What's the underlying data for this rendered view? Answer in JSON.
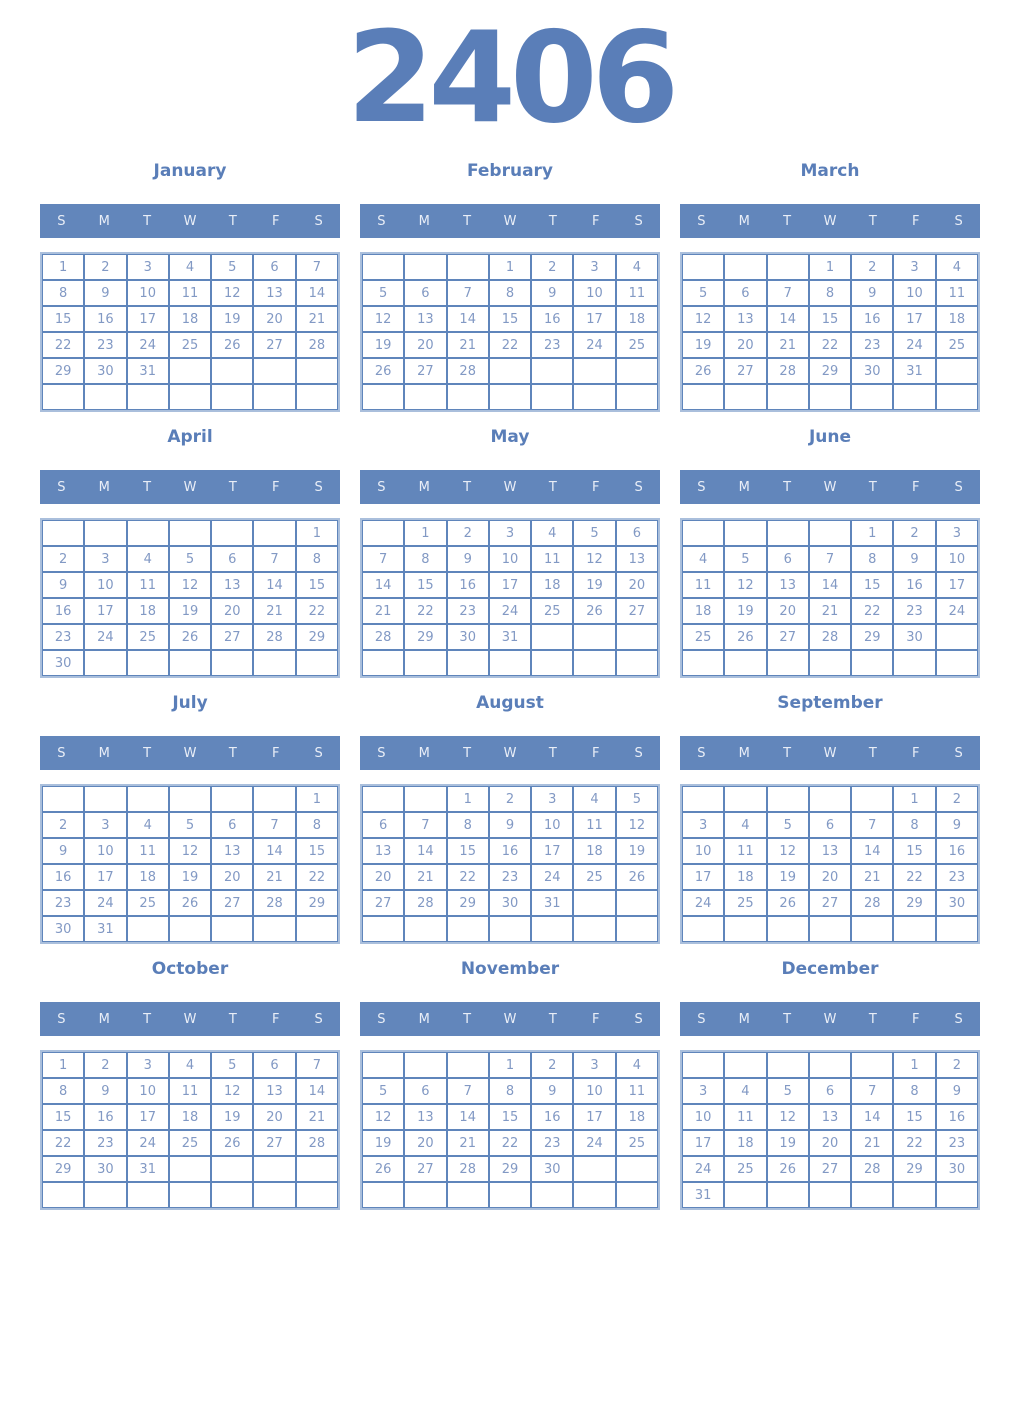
{
  "page": {
    "year": "2406"
  },
  "weekdays": [
    "S",
    "M",
    "T",
    "W",
    "T",
    "F",
    "S"
  ],
  "colors": {
    "accent": "#5a7eb8",
    "header_bg": "#6286bb",
    "header_text": "#e9eef7",
    "day_number": "#8299c4",
    "grid_border": "#5f85bb",
    "grid_outer_border": "#aabfdc",
    "background": "#ffffff"
  },
  "months": [
    {
      "name": "January",
      "weeks": [
        [
          "1",
          "2",
          "3",
          "4",
          "5",
          "6",
          "7"
        ],
        [
          "8",
          "9",
          "10",
          "11",
          "12",
          "13",
          "14"
        ],
        [
          "15",
          "16",
          "17",
          "18",
          "19",
          "20",
          "21"
        ],
        [
          "22",
          "23",
          "24",
          "25",
          "26",
          "27",
          "28"
        ],
        [
          "29",
          "30",
          "31",
          "",
          "",
          "",
          ""
        ],
        [
          "",
          "",
          "",
          "",
          "",
          "",
          ""
        ]
      ]
    },
    {
      "name": "February",
      "weeks": [
        [
          "",
          "",
          "",
          "1",
          "2",
          "3",
          "4"
        ],
        [
          "5",
          "6",
          "7",
          "8",
          "9",
          "10",
          "11"
        ],
        [
          "12",
          "13",
          "14",
          "15",
          "16",
          "17",
          "18"
        ],
        [
          "19",
          "20",
          "21",
          "22",
          "23",
          "24",
          "25"
        ],
        [
          "26",
          "27",
          "28",
          "",
          "",
          "",
          ""
        ],
        [
          "",
          "",
          "",
          "",
          "",
          "",
          ""
        ]
      ]
    },
    {
      "name": "March",
      "weeks": [
        [
          "",
          "",
          "",
          "1",
          "2",
          "3",
          "4"
        ],
        [
          "5",
          "6",
          "7",
          "8",
          "9",
          "10",
          "11"
        ],
        [
          "12",
          "13",
          "14",
          "15",
          "16",
          "17",
          "18"
        ],
        [
          "19",
          "20",
          "21",
          "22",
          "23",
          "24",
          "25"
        ],
        [
          "26",
          "27",
          "28",
          "29",
          "30",
          "31",
          ""
        ],
        [
          "",
          "",
          "",
          "",
          "",
          "",
          ""
        ]
      ]
    },
    {
      "name": "April",
      "weeks": [
        [
          "",
          "",
          "",
          "",
          "",
          "",
          "1"
        ],
        [
          "2",
          "3",
          "4",
          "5",
          "6",
          "7",
          "8"
        ],
        [
          "9",
          "10",
          "11",
          "12",
          "13",
          "14",
          "15"
        ],
        [
          "16",
          "17",
          "18",
          "19",
          "20",
          "21",
          "22"
        ],
        [
          "23",
          "24",
          "25",
          "26",
          "27",
          "28",
          "29"
        ],
        [
          "30",
          "",
          "",
          "",
          "",
          "",
          ""
        ]
      ]
    },
    {
      "name": "May",
      "weeks": [
        [
          "",
          "1",
          "2",
          "3",
          "4",
          "5",
          "6"
        ],
        [
          "7",
          "8",
          "9",
          "10",
          "11",
          "12",
          "13"
        ],
        [
          "14",
          "15",
          "16",
          "17",
          "18",
          "19",
          "20"
        ],
        [
          "21",
          "22",
          "23",
          "24",
          "25",
          "26",
          "27"
        ],
        [
          "28",
          "29",
          "30",
          "31",
          "",
          "",
          ""
        ],
        [
          "",
          "",
          "",
          "",
          "",
          "",
          ""
        ]
      ]
    },
    {
      "name": "June",
      "weeks": [
        [
          "",
          "",
          "",
          "",
          "1",
          "2",
          "3"
        ],
        [
          "4",
          "5",
          "6",
          "7",
          "8",
          "9",
          "10"
        ],
        [
          "11",
          "12",
          "13",
          "14",
          "15",
          "16",
          "17"
        ],
        [
          "18",
          "19",
          "20",
          "21",
          "22",
          "23",
          "24"
        ],
        [
          "25",
          "26",
          "27",
          "28",
          "29",
          "30",
          ""
        ],
        [
          "",
          "",
          "",
          "",
          "",
          "",
          ""
        ]
      ]
    },
    {
      "name": "July",
      "weeks": [
        [
          "",
          "",
          "",
          "",
          "",
          "",
          "1"
        ],
        [
          "2",
          "3",
          "4",
          "5",
          "6",
          "7",
          "8"
        ],
        [
          "9",
          "10",
          "11",
          "12",
          "13",
          "14",
          "15"
        ],
        [
          "16",
          "17",
          "18",
          "19",
          "20",
          "21",
          "22"
        ],
        [
          "23",
          "24",
          "25",
          "26",
          "27",
          "28",
          "29"
        ],
        [
          "30",
          "31",
          "",
          "",
          "",
          "",
          ""
        ]
      ]
    },
    {
      "name": "August",
      "weeks": [
        [
          "",
          "",
          "1",
          "2",
          "3",
          "4",
          "5"
        ],
        [
          "6",
          "7",
          "8",
          "9",
          "10",
          "11",
          "12"
        ],
        [
          "13",
          "14",
          "15",
          "16",
          "17",
          "18",
          "19"
        ],
        [
          "20",
          "21",
          "22",
          "23",
          "24",
          "25",
          "26"
        ],
        [
          "27",
          "28",
          "29",
          "30",
          "31",
          "",
          ""
        ],
        [
          "",
          "",
          "",
          "",
          "",
          "",
          ""
        ]
      ]
    },
    {
      "name": "September",
      "weeks": [
        [
          "",
          "",
          "",
          "",
          "",
          "1",
          "2"
        ],
        [
          "3",
          "4",
          "5",
          "6",
          "7",
          "8",
          "9"
        ],
        [
          "10",
          "11",
          "12",
          "13",
          "14",
          "15",
          "16"
        ],
        [
          "17",
          "18",
          "19",
          "20",
          "21",
          "22",
          "23"
        ],
        [
          "24",
          "25",
          "26",
          "27",
          "28",
          "29",
          "30"
        ],
        [
          "",
          "",
          "",
          "",
          "",
          "",
          ""
        ]
      ]
    },
    {
      "name": "October",
      "weeks": [
        [
          "1",
          "2",
          "3",
          "4",
          "5",
          "6",
          "7"
        ],
        [
          "8",
          "9",
          "10",
          "11",
          "12",
          "13",
          "14"
        ],
        [
          "15",
          "16",
          "17",
          "18",
          "19",
          "20",
          "21"
        ],
        [
          "22",
          "23",
          "24",
          "25",
          "26",
          "27",
          "28"
        ],
        [
          "29",
          "30",
          "31",
          "",
          "",
          "",
          ""
        ],
        [
          "",
          "",
          "",
          "",
          "",
          "",
          ""
        ]
      ]
    },
    {
      "name": "November",
      "weeks": [
        [
          "",
          "",
          "",
          "1",
          "2",
          "3",
          "4"
        ],
        [
          "5",
          "6",
          "7",
          "8",
          "9",
          "10",
          "11"
        ],
        [
          "12",
          "13",
          "14",
          "15",
          "16",
          "17",
          "18"
        ],
        [
          "19",
          "20",
          "21",
          "22",
          "23",
          "24",
          "25"
        ],
        [
          "26",
          "27",
          "28",
          "29",
          "30",
          "",
          ""
        ],
        [
          "",
          "",
          "",
          "",
          "",
          "",
          ""
        ]
      ]
    },
    {
      "name": "December",
      "weeks": [
        [
          "",
          "",
          "",
          "",
          "",
          "1",
          "2"
        ],
        [
          "3",
          "4",
          "5",
          "6",
          "7",
          "8",
          "9"
        ],
        [
          "10",
          "11",
          "12",
          "13",
          "14",
          "15",
          "16"
        ],
        [
          "17",
          "18",
          "19",
          "20",
          "21",
          "22",
          "23"
        ],
        [
          "24",
          "25",
          "26",
          "27",
          "28",
          "29",
          "30"
        ],
        [
          "31",
          "",
          "",
          "",
          "",
          "",
          ""
        ]
      ]
    }
  ]
}
